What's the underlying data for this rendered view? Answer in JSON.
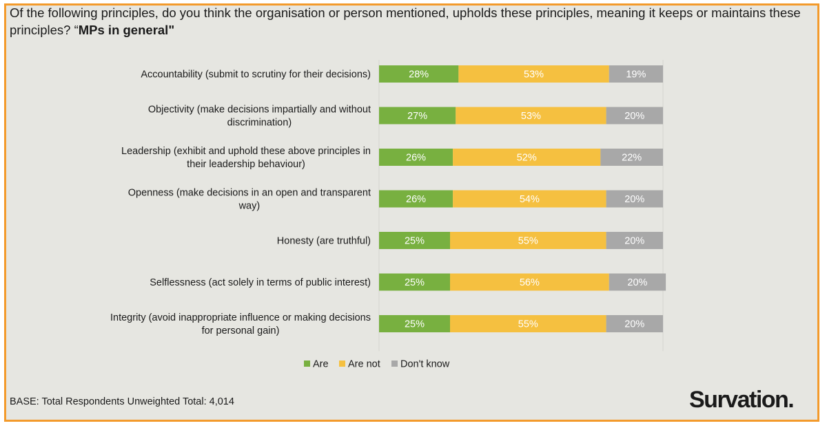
{
  "question": {
    "prefix": "Of the following principles, do you think the organisation or person mentioned, upholds these principles, meaning it keeps or maintains these principles? “",
    "subject": "MPs in general\""
  },
  "chart_data": {
    "type": "bar",
    "orientation": "horizontal",
    "stacked": true,
    "percent_stacked": true,
    "categories": [
      [
        "Accountability (submit to scrutiny for their decisions)"
      ],
      [
        "Objectivity (make decisions impartially and without",
        "discrimination)"
      ],
      [
        "Leadership (exhibit and uphold these above principles in",
        "their leadership behaviour)"
      ],
      [
        "Openness (make decisions in an open and transparent",
        "way)"
      ],
      [
        "Honesty (are truthful)"
      ],
      [
        "Selflessness (act solely in terms of public interest)"
      ],
      [
        "Integrity (avoid inappropriate influence or making decisions",
        "for personal gain)"
      ]
    ],
    "series": [
      {
        "name": "Are",
        "color": "#78b040",
        "values": [
          28,
          27,
          26,
          26,
          25,
          25,
          25
        ],
        "labels": [
          "28%",
          "27%",
          "26%",
          "26%",
          "25%",
          "25%",
          "25%"
        ]
      },
      {
        "name": "Are not",
        "color": "#f5c040",
        "values": [
          53,
          53,
          52,
          54,
          55,
          56,
          55
        ],
        "labels": [
          "53%",
          "53%",
          "52%",
          "54%",
          "55%",
          "56%",
          "55%"
        ]
      },
      {
        "name": "Don't know",
        "color": "#a8a8a8",
        "values": [
          19,
          20,
          22,
          20,
          20,
          20,
          20
        ],
        "labels": [
          "19%",
          "20%",
          "22%",
          "20%",
          "20%",
          "20%",
          "20%"
        ]
      }
    ],
    "xlim": [
      0,
      100
    ],
    "legend_position": "bottom-center"
  },
  "footer": {
    "base": "BASE: Total Respondents Unweighted Total: 4,014",
    "brand": "Survation."
  }
}
